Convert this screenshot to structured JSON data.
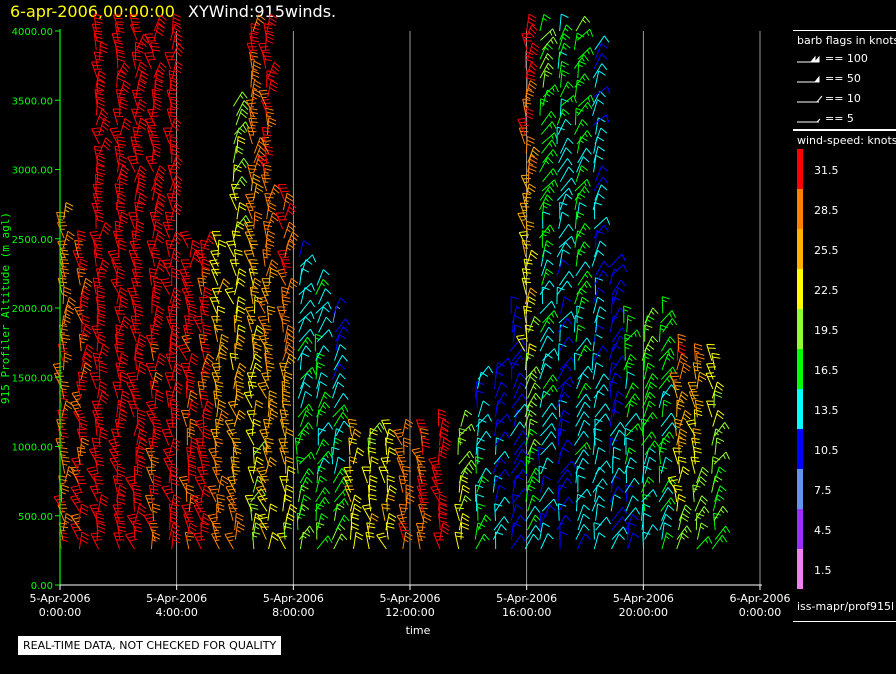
{
  "title": {
    "time": "6-apr-2006,00:00:00",
    "text": "XYWind:915winds."
  },
  "chart_data": {
    "type": "wind-barb",
    "ylabel": "915 Profiler Altitude (m agl)",
    "xlabel": "time",
    "ylim": [
      0,
      4000
    ],
    "xlim_hours": [
      0,
      24
    ],
    "y_ticks": [
      "0.00",
      "500.00",
      "1000.00",
      "1500.00",
      "2000.00",
      "2500.00",
      "3000.00",
      "3500.00",
      "4000.00"
    ],
    "x_ticks": [
      {
        "date": "5-Apr-2006",
        "time": "0:00:00"
      },
      {
        "date": "5-Apr-2006",
        "time": "4:00:00"
      },
      {
        "date": "5-Apr-2006",
        "time": "8:00:00"
      },
      {
        "date": "5-Apr-2006",
        "time": "12:00:00"
      },
      {
        "date": "5-Apr-2006",
        "time": "16:00:00"
      },
      {
        "date": "5-Apr-2006",
        "time": "20:00:00"
      },
      {
        "date": "6-Apr-2006",
        "time": "0:00:00"
      }
    ],
    "grid_x": true,
    "profiles": [
      {
        "hour": 0.1,
        "top": 2650,
        "speed_low": 30,
        "speed_high": 27
      },
      {
        "hour": 0.7,
        "top": 2500,
        "speed_low": 31,
        "speed_high": 29
      },
      {
        "hour": 1.3,
        "top": 4000,
        "speed_low": 32,
        "speed_high": 34
      },
      {
        "hour": 2.0,
        "top": 4000,
        "speed_low": 31,
        "speed_high": 33
      },
      {
        "hour": 2.6,
        "top": 4000,
        "speed_low": 31,
        "speed_high": 32
      },
      {
        "hour": 3.2,
        "top": 4000,
        "speed_low": 29,
        "speed_high": 33
      },
      {
        "hour": 3.8,
        "top": 4000,
        "speed_low": 31,
        "speed_high": 33
      },
      {
        "hour": 4.4,
        "top": 2500,
        "speed_low": 30,
        "speed_high": 31
      },
      {
        "hour": 4.9,
        "top": 2500,
        "speed_low": 31,
        "speed_high": 30
      },
      {
        "hour": 5.4,
        "top": 2450,
        "speed_low": 30,
        "speed_high": 22
      },
      {
        "hour": 6.0,
        "top": 3500,
        "speed_low": 28,
        "speed_high": 19
      },
      {
        "hour": 6.6,
        "top": 4000,
        "speed_low": 19,
        "speed_high": 30
      },
      {
        "hour": 7.1,
        "top": 4000,
        "speed_low": 23,
        "speed_high": 31
      },
      {
        "hour": 7.7,
        "top": 2800,
        "speed_low": 20,
        "speed_high": 31
      },
      {
        "hour": 8.2,
        "top": 2400,
        "speed_low": 18,
        "speed_high": 12
      },
      {
        "hour": 8.8,
        "top": 2200,
        "speed_low": 17,
        "speed_high": 13
      },
      {
        "hour": 9.4,
        "top": 2000,
        "speed_low": 20,
        "speed_high": 9
      },
      {
        "hour": 10.0,
        "top": 1100,
        "speed_low": 21,
        "speed_high": 24
      },
      {
        "hour": 10.6,
        "top": 1100,
        "speed_low": 23,
        "speed_high": 21
      },
      {
        "hour": 11.2,
        "top": 1100,
        "speed_low": 24,
        "speed_high": 22
      },
      {
        "hour": 11.8,
        "top": 1100,
        "speed_low": 29,
        "speed_high": 28
      },
      {
        "hour": 12.4,
        "top": 1100,
        "speed_low": 30,
        "speed_high": 30
      },
      {
        "hour": 13.0,
        "top": 1200,
        "speed_low": 31,
        "speed_high": 31
      },
      {
        "hour": 13.7,
        "top": 1200,
        "speed_low": 24,
        "speed_high": 17
      },
      {
        "hour": 14.3,
        "top": 1500,
        "speed_low": 18,
        "speed_high": 11
      },
      {
        "hour": 14.9,
        "top": 1600,
        "speed_low": 13,
        "speed_high": 10
      },
      {
        "hour": 15.5,
        "top": 2000,
        "speed_low": 11,
        "speed_high": 10
      },
      {
        "hour": 16.0,
        "top": 4000,
        "speed_low": 12,
        "speed_high": 32
      },
      {
        "hour": 16.5,
        "top": 4000,
        "speed_low": 11,
        "speed_high": 18
      },
      {
        "hour": 17.1,
        "top": 4000,
        "speed_low": 10,
        "speed_high": 15
      },
      {
        "hour": 17.7,
        "top": 4000,
        "speed_low": 12,
        "speed_high": 17
      },
      {
        "hour": 18.3,
        "top": 3900,
        "speed_low": 13,
        "speed_high": 12
      },
      {
        "hour": 18.9,
        "top": 2300,
        "speed_low": 12,
        "speed_high": 9
      },
      {
        "hour": 19.4,
        "top": 1900,
        "speed_low": 11,
        "speed_high": 17
      },
      {
        "hour": 20.0,
        "top": 1900,
        "speed_low": 12,
        "speed_high": 18
      },
      {
        "hour": 20.6,
        "top": 2000,
        "speed_low": 13,
        "speed_high": 17
      },
      {
        "hour": 21.2,
        "top": 1700,
        "speed_low": 16,
        "speed_high": 30
      },
      {
        "hour": 21.8,
        "top": 1650,
        "speed_low": 16,
        "speed_high": 27
      },
      {
        "hour": 22.4,
        "top": 1650,
        "speed_low": 15,
        "speed_high": 22
      }
    ]
  },
  "barb_legend": {
    "title": "barb flags in knots",
    "items": [
      {
        "label": "== 100",
        "kind": "flag100"
      },
      {
        "label": "== 50",
        "kind": "flag50"
      },
      {
        "label": "== 10",
        "kind": "full"
      },
      {
        "label": "== 5",
        "kind": "half"
      }
    ]
  },
  "speed_legend": {
    "title": "wind-speed: knots",
    "items": [
      {
        "label": "31.5",
        "color": "#ff0000"
      },
      {
        "label": "28.5",
        "color": "#ff8000"
      },
      {
        "label": "25.5",
        "color": "#ffb000"
      },
      {
        "label": "22.5",
        "color": "#ffff00"
      },
      {
        "label": "19.5",
        "color": "#90ff30"
      },
      {
        "label": "16.5",
        "color": "#00ff00"
      },
      {
        "label": "13.5",
        "color": "#00ffff"
      },
      {
        "label": "10.5",
        "color": "#0000ff"
      },
      {
        "label": "7.5",
        "color": "#6495ed"
      },
      {
        "label": "4.5",
        "color": "#9a30ff"
      },
      {
        "label": "1.5",
        "color": "#ee82ee"
      }
    ]
  },
  "source": "iss-mapr/prof915l",
  "qc_notice": "REAL-TIME DATA, NOT CHECKED FOR QUALITY",
  "colors": {
    "axis": "#00ff00",
    "grid": "#c0c0c0",
    "title_time": "#ffff00"
  }
}
